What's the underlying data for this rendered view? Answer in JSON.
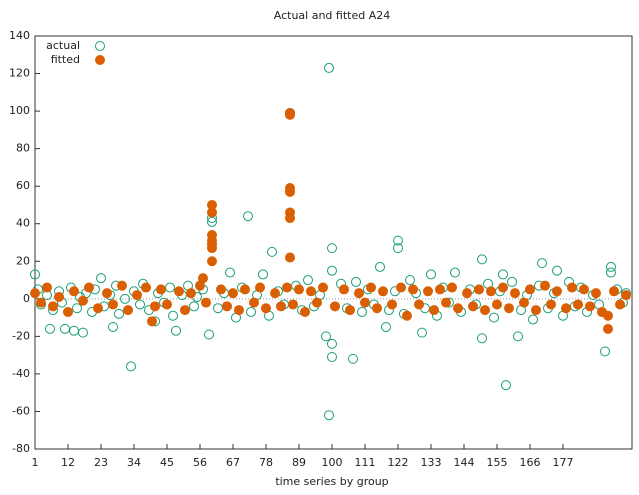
{
  "chart_data": {
    "type": "scatter",
    "title": "Actual and fitted A24",
    "x_label": "time series by group",
    "xlim": [
      1,
      200
    ],
    "ylim": [
      -80,
      140
    ],
    "xticks": [
      1,
      12,
      23,
      34,
      45,
      56,
      67,
      78,
      89,
      100,
      111,
      122,
      133,
      144,
      155,
      166,
      177
    ],
    "yticks": [
      -80,
      -60,
      -40,
      -20,
      0,
      20,
      40,
      60,
      80,
      100,
      120,
      140
    ],
    "zero_line": true,
    "legend_position": "upper left",
    "series": [
      {
        "name": "actual",
        "color": "#1b9e77",
        "marker": "open",
        "x": [
          1,
          33,
          59,
          60,
          60,
          72,
          80,
          86,
          99,
          99,
          100,
          100,
          98,
          100,
          100,
          107,
          122,
          122,
          150,
          150,
          158,
          157,
          170,
          175,
          193,
          193,
          191,
          41,
          48,
          14,
          17,
          6,
          11,
          118,
          130,
          162,
          27,
          2,
          3,
          5,
          7,
          9,
          10,
          13,
          15,
          16,
          18,
          20,
          21,
          23,
          24,
          26,
          28,
          29,
          31,
          34,
          36,
          37,
          39,
          42,
          44,
          46,
          47,
          50,
          52,
          54,
          55,
          57,
          62,
          64,
          66,
          68,
          70,
          73,
          75,
          77,
          79,
          82,
          84,
          88,
          90,
          92,
          94,
          96,
          103,
          105,
          108,
          110,
          112,
          114,
          116,
          119,
          121,
          124,
          126,
          128,
          131,
          133,
          135,
          137,
          139,
          141,
          143,
          146,
          148,
          152,
          154,
          156,
          160,
          163,
          165,
          167,
          169,
          172,
          174,
          177,
          179,
          181,
          183,
          185,
          187,
          189,
          195,
          197,
          198
        ],
        "values": [
          13,
          -36,
          -19,
          43,
          41,
          44,
          25,
          99,
          123,
          -62,
          27,
          15,
          -20,
          -24,
          -31,
          -32,
          31,
          27,
          21,
          -21,
          -46,
          13,
          19,
          15,
          17,
          14,
          -28,
          -12,
          -17,
          -17,
          -18,
          -16,
          -16,
          -15,
          -18,
          -20,
          -15,
          5,
          -3,
          2,
          -6,
          4,
          -2,
          6,
          -5,
          1,
          3,
          -7,
          5,
          11,
          -4,
          2,
          7,
          -8,
          0,
          4,
          -3,
          8,
          -6,
          3,
          -2,
          6,
          -9,
          2,
          7,
          -4,
          1,
          5,
          -5,
          3,
          14,
          -10,
          6,
          -7,
          2,
          13,
          -9,
          4,
          -3,
          7,
          -6,
          10,
          -4,
          2,
          8,
          -5,
          9,
          -7,
          5,
          -3,
          17,
          -6,
          4,
          -8,
          10,
          3,
          -5,
          13,
          -9,
          6,
          -2,
          14,
          -7,
          5,
          -3,
          8,
          -10,
          4,
          9,
          -6,
          2,
          -11,
          7,
          -5,
          3,
          -9,
          9,
          -4,
          6,
          -7,
          2,
          -3,
          5,
          -2,
          3
        ]
      },
      {
        "name": "fitted",
        "color": "#d95f02",
        "marker": "filled",
        "x": [
          60,
          60,
          60,
          60,
          60,
          60,
          60,
          86,
          86,
          86,
          86,
          86,
          86,
          86,
          192,
          40,
          57,
          192,
          1,
          3,
          5,
          7,
          9,
          12,
          14,
          17,
          19,
          22,
          25,
          27,
          30,
          32,
          35,
          38,
          41,
          43,
          45,
          49,
          51,
          53,
          56,
          58,
          63,
          65,
          67,
          69,
          71,
          74,
          76,
          78,
          81,
          83,
          85,
          87,
          89,
          91,
          93,
          95,
          97,
          101,
          104,
          106,
          109,
          111,
          113,
          115,
          117,
          120,
          123,
          125,
          127,
          129,
          132,
          134,
          136,
          138,
          140,
          142,
          145,
          147,
          149,
          151,
          153,
          155,
          157,
          159,
          161,
          164,
          166,
          168,
          171,
          173,
          175,
          178,
          180,
          182,
          184,
          186,
          188,
          190,
          194,
          196,
          198
        ],
        "values": [
          50,
          46,
          34,
          31,
          29,
          27,
          20,
          99,
          98,
          59,
          57,
          46,
          43,
          22,
          -16,
          -12,
          11,
          -9,
          3,
          -2,
          6,
          -4,
          1,
          -7,
          4,
          -1,
          6,
          -5,
          3,
          -3,
          7,
          -6,
          2,
          6,
          -4,
          5,
          -3,
          4,
          -6,
          3,
          7,
          -2,
          5,
          -4,
          3,
          -6,
          5,
          -2,
          6,
          -5,
          3,
          -4,
          6,
          -3,
          5,
          -7,
          4,
          -2,
          6,
          -4,
          5,
          -6,
          3,
          -2,
          6,
          -5,
          4,
          -3,
          6,
          -9,
          5,
          -3,
          4,
          -6,
          5,
          -2,
          6,
          -5,
          3,
          -4,
          5,
          -6,
          4,
          -3,
          6,
          -5,
          3,
          -2,
          5,
          -6,
          7,
          -3,
          4,
          -5,
          6,
          -3,
          5,
          -4,
          3,
          -7,
          4,
          -3,
          2
        ]
      }
    ]
  }
}
